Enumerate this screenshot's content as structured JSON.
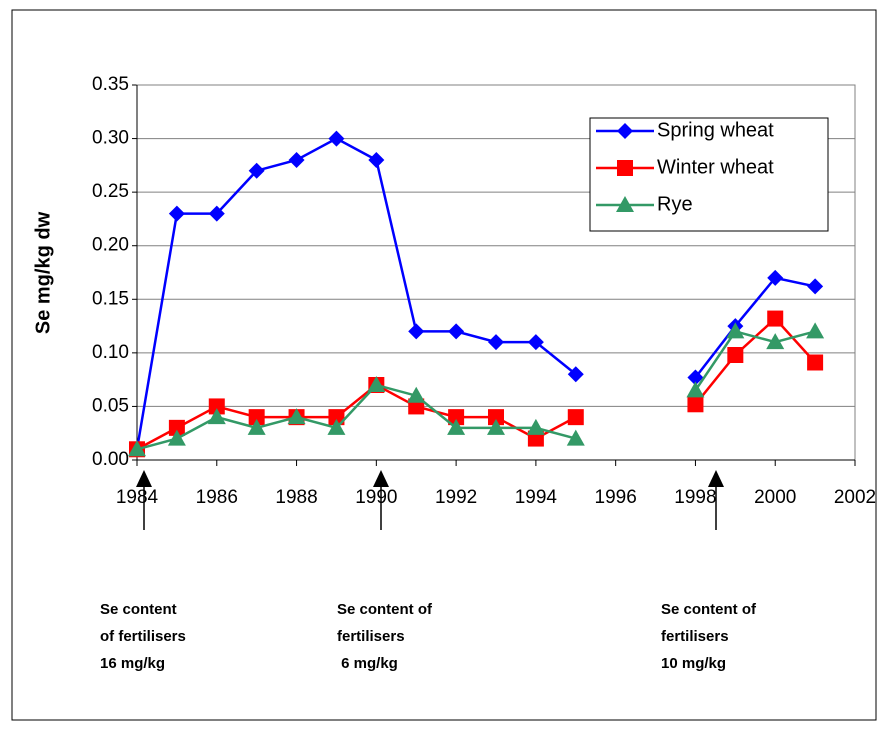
{
  "chart_data": {
    "type": "line",
    "y_label": "Se mg/kg dw",
    "x": [
      1984,
      1985,
      1986,
      1987,
      1988,
      1989,
      1990,
      1991,
      1992,
      1993,
      1994,
      1995,
      1996,
      1997,
      1998,
      1999,
      2000,
      2001
    ],
    "series": [
      {
        "name": "Spring wheat",
        "color": "#0000ff",
        "marker": "diamond",
        "values": [
          0.01,
          0.23,
          0.23,
          0.27,
          0.28,
          0.3,
          0.28,
          0.12,
          0.12,
          0.11,
          0.11,
          0.08,
          null,
          null,
          0.077,
          0.125,
          0.17,
          0.162
        ]
      },
      {
        "name": "Winter wheat",
        "color": "#ff0000",
        "marker": "square",
        "values": [
          0.01,
          0.03,
          0.05,
          0.04,
          0.04,
          0.04,
          0.07,
          0.05,
          0.04,
          0.04,
          0.02,
          0.04,
          null,
          null,
          0.052,
          0.098,
          0.132,
          0.091
        ]
      },
      {
        "name": "Rye",
        "color": "#339966",
        "marker": "triangle",
        "values": [
          0.01,
          0.02,
          0.04,
          0.03,
          0.04,
          0.03,
          0.07,
          0.06,
          0.03,
          0.03,
          0.03,
          0.02,
          null,
          null,
          0.065,
          0.12,
          0.11,
          0.12
        ]
      }
    ],
    "xlim": [
      1984,
      2002
    ],
    "xticks": [
      1984,
      1986,
      1988,
      1990,
      1992,
      1994,
      1996,
      1998,
      2000,
      2002
    ],
    "ylim": [
      0,
      0.35
    ],
    "yticks": [
      {
        "value": 0,
        "label": "0.00"
      },
      0.05,
      {
        "value": 0.1,
        "label": "0.10"
      },
      0.15,
      {
        "value": 0.2,
        "label": "0.20"
      },
      0.25,
      {
        "value": 0.3,
        "label": "0.30"
      },
      0.35
    ],
    "grid": true,
    "legend": "top-right",
    "annotations": [
      [
        "Se content",
        "of fertilisers",
        "16 mg/kg"
      ],
      [
        "Se content of",
        "fertilisers",
        " 6 mg/kg"
      ],
      [
        "Se content of",
        "fertilisers",
        "10 mg/kg"
      ]
    ]
  }
}
